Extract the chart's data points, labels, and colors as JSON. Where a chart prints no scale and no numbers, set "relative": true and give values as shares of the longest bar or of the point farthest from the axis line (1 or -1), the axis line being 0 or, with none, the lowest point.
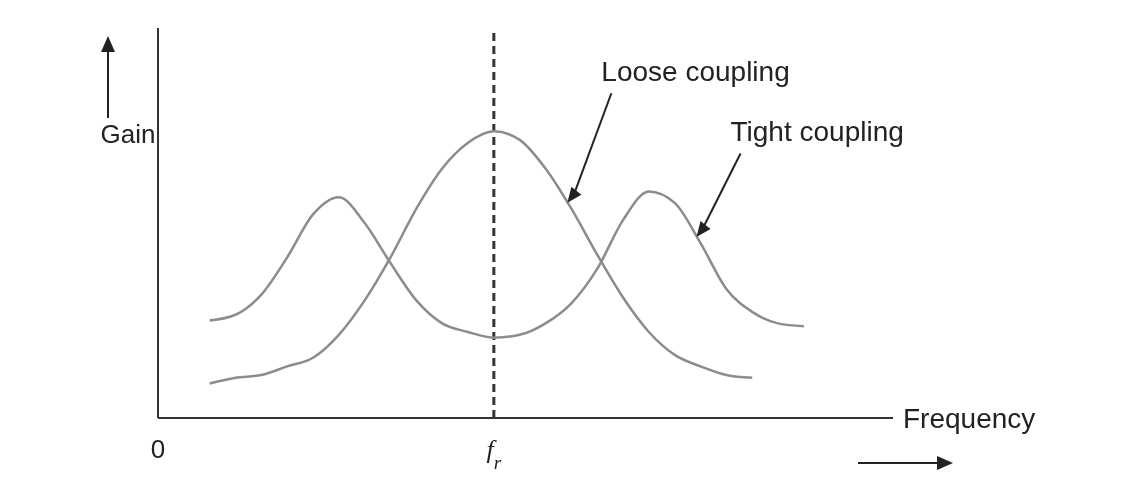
{
  "chart_data": {
    "type": "line",
    "relative": true,
    "ylabel": "Gain",
    "xlabel": "Frequency",
    "categories": [
      "0",
      null,
      null,
      null,
      null,
      null,
      null,
      null,
      null,
      null,
      null,
      null,
      null,
      "f$_{r}$",
      null,
      null,
      null,
      null,
      null,
      null,
      null,
      null,
      null,
      null,
      null,
      null
    ],
    "series": [
      {
        "name": "Loose coupling",
        "color": "#8c8c8c",
        "values": [
          null,
          null,
          0.12,
          0.14,
          0.15,
          0.18,
          0.21,
          0.29,
          0.41,
          0.56,
          0.73,
          0.87,
          0.96,
          1,
          0.97,
          0.87,
          0.73,
          0.57,
          0.42,
          0.3,
          0.22,
          0.18,
          0.15,
          0.14,
          null,
          null
        ]
      },
      {
        "name": "Tight coupling",
        "color": "#8c8c8c",
        "values": [
          null,
          null,
          0.34,
          0.36,
          0.43,
          0.56,
          0.71,
          0.77,
          0.68,
          0.54,
          0.41,
          0.33,
          0.3,
          0.28,
          0.29,
          0.33,
          0.4,
          0.52,
          0.69,
          0.79,
          0.75,
          0.61,
          0.45,
          0.37,
          0.33,
          0.32
        ]
      }
    ],
    "ref_lines": [
      {
        "axis": "x",
        "value": "f$_{r}$",
        "line_style": "dashed",
        "color": "#333333"
      }
    ],
    "grid": false,
    "legend": false,
    "marker": "none",
    "line_style": "solid"
  }
}
